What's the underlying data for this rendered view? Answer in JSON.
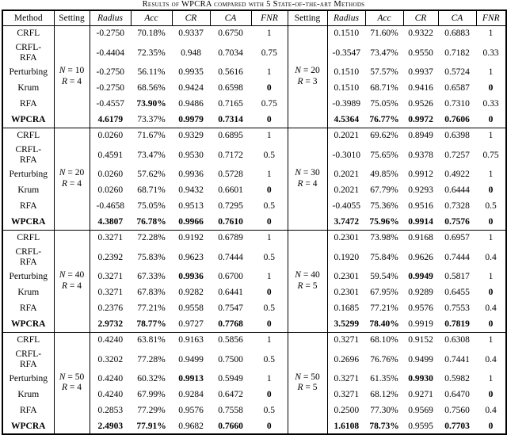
{
  "title": "Results of WPCRA compared with 5 State-of-the-art Methods",
  "header": {
    "columns": [
      "Method",
      "Setting",
      "Radius",
      "Acc",
      "CR",
      "CA",
      "FNR",
      "Setting",
      "Radius",
      "Acc",
      "CR",
      "CA",
      "FNR"
    ]
  },
  "blocks": [
    {
      "left_setting": [
        "N = 10",
        "R = 4"
      ],
      "right_setting": [
        "N = 20",
        "R = 3"
      ],
      "rows": [
        {
          "method_lines": [
            "CRFL"
          ],
          "bold_method": false,
          "left": [
            "-0.2750",
            "70.18%",
            "0.9337",
            "0.6750",
            "1"
          ],
          "left_bold": [
            0,
            0,
            0,
            0,
            0
          ],
          "right": [
            "0.1510",
            "71.60%",
            "0.9322",
            "0.6883",
            "1"
          ],
          "right_bold": [
            0,
            0,
            0,
            0,
            0
          ]
        },
        {
          "method_lines": [
            "CRFL-",
            "RFA"
          ],
          "bold_method": false,
          "left": [
            "-0.4404",
            "72.35%",
            "0.948",
            "0.7034",
            "0.75"
          ],
          "left_bold": [
            0,
            0,
            0,
            0,
            0
          ],
          "right": [
            "-0.3547",
            "73.47%",
            "0.9550",
            "0.7182",
            "0.33"
          ],
          "right_bold": [
            0,
            0,
            0,
            0,
            0
          ]
        },
        {
          "method_lines": [
            "Perturbing"
          ],
          "bold_method": false,
          "left": [
            "-0.2750",
            "56.11%",
            "0.9935",
            "0.5616",
            "1"
          ],
          "left_bold": [
            0,
            0,
            0,
            0,
            0
          ],
          "right": [
            "0.1510",
            "57.57%",
            "0.9937",
            "0.5724",
            "1"
          ],
          "right_bold": [
            0,
            0,
            0,
            0,
            0
          ]
        },
        {
          "method_lines": [
            "Krum"
          ],
          "bold_method": false,
          "left": [
            "-0.2750",
            "68.56%",
            "0.9424",
            "0.6598",
            "0"
          ],
          "left_bold": [
            0,
            0,
            0,
            0,
            1
          ],
          "right": [
            "0.1510",
            "68.71%",
            "0.9416",
            "0.6587",
            "0"
          ],
          "right_bold": [
            0,
            0,
            0,
            0,
            1
          ]
        },
        {
          "method_lines": [
            "RFA"
          ],
          "bold_method": false,
          "left": [
            "-0.4557",
            "73.90%",
            "0.9486",
            "0.7165",
            "0.75"
          ],
          "left_bold": [
            0,
            1,
            0,
            0,
            0
          ],
          "right": [
            "-0.3989",
            "75.05%",
            "0.9526",
            "0.7310",
            "0.33"
          ],
          "right_bold": [
            0,
            0,
            0,
            0,
            0
          ]
        },
        {
          "method_lines": [
            "WPCRA"
          ],
          "bold_method": true,
          "left": [
            "4.6179",
            "73.37%",
            "0.9979",
            "0.7314",
            "0"
          ],
          "left_bold": [
            1,
            0,
            1,
            1,
            1
          ],
          "right": [
            "4.5364",
            "76.77%",
            "0.9972",
            "0.7606",
            "0"
          ],
          "right_bold": [
            1,
            1,
            1,
            1,
            1
          ]
        }
      ]
    },
    {
      "left_setting": [
        "N = 20",
        "R = 4"
      ],
      "right_setting": [
        "N = 30",
        "R = 4"
      ],
      "rows": [
        {
          "method_lines": [
            "CRFL"
          ],
          "bold_method": false,
          "left": [
            "0.0260",
            "71.67%",
            "0.9329",
            "0.6895",
            "1"
          ],
          "left_bold": [
            0,
            0,
            0,
            0,
            0
          ],
          "right": [
            "0.2021",
            "69.62%",
            "0.8949",
            "0.6398",
            "1"
          ],
          "right_bold": [
            0,
            0,
            0,
            0,
            0
          ]
        },
        {
          "method_lines": [
            "CRFL-",
            "RFA"
          ],
          "bold_method": false,
          "left": [
            "0.4591",
            "73.47%",
            "0.9530",
            "0.7172",
            "0.5"
          ],
          "left_bold": [
            0,
            0,
            0,
            0,
            0
          ],
          "right": [
            "-0.3010",
            "75.65%",
            "0.9378",
            "0.7257",
            "0.75"
          ],
          "right_bold": [
            0,
            0,
            0,
            0,
            0
          ]
        },
        {
          "method_lines": [
            "Perturbing"
          ],
          "bold_method": false,
          "left": [
            "0.0260",
            "57.62%",
            "0.9936",
            "0.5728",
            "1"
          ],
          "left_bold": [
            0,
            0,
            0,
            0,
            0
          ],
          "right": [
            "0.2021",
            "49.85%",
            "0.9912",
            "0.4922",
            "1"
          ],
          "right_bold": [
            0,
            0,
            0,
            0,
            0
          ]
        },
        {
          "method_lines": [
            "Krum"
          ],
          "bold_method": false,
          "left": [
            "0.0260",
            "68.71%",
            "0.9432",
            "0.6601",
            "0"
          ],
          "left_bold": [
            0,
            0,
            0,
            0,
            1
          ],
          "right": [
            "0.2021",
            "67.79%",
            "0.9293",
            "0.6444",
            "0"
          ],
          "right_bold": [
            0,
            0,
            0,
            0,
            1
          ]
        },
        {
          "method_lines": [
            "RFA"
          ],
          "bold_method": false,
          "left": [
            "-0.4658",
            "75.05%",
            "0.9513",
            "0.7295",
            "0.5"
          ],
          "left_bold": [
            0,
            0,
            0,
            0,
            0
          ],
          "right": [
            "-0.4055",
            "75.36%",
            "0.9516",
            "0.7328",
            "0.5"
          ],
          "right_bold": [
            0,
            0,
            0,
            0,
            0
          ]
        },
        {
          "method_lines": [
            "WPCRA"
          ],
          "bold_method": true,
          "left": [
            "4.3807",
            "76.78%",
            "0.9966",
            "0.7610",
            "0"
          ],
          "left_bold": [
            1,
            1,
            1,
            1,
            1
          ],
          "right": [
            "3.7472",
            "75.96%",
            "0.9914",
            "0.7576",
            "0"
          ],
          "right_bold": [
            1,
            1,
            1,
            1,
            1
          ]
        }
      ]
    },
    {
      "left_setting": [
        "N = 40",
        "R = 4"
      ],
      "right_setting": [
        "N = 40",
        "R = 5"
      ],
      "rows": [
        {
          "method_lines": [
            "CRFL"
          ],
          "bold_method": false,
          "left": [
            "0.3271",
            "72.28%",
            "0.9192",
            "0.6789",
            "1"
          ],
          "left_bold": [
            0,
            0,
            0,
            0,
            0
          ],
          "right": [
            "0.2301",
            "73.98%",
            "0.9168",
            "0.6957",
            "1"
          ],
          "right_bold": [
            0,
            0,
            0,
            0,
            0
          ]
        },
        {
          "method_lines": [
            "CRFL-",
            "RFA"
          ],
          "bold_method": false,
          "left": [
            "0.2392",
            "75.83%",
            "0.9623",
            "0.7444",
            "0.5"
          ],
          "left_bold": [
            0,
            0,
            0,
            0,
            0
          ],
          "right": [
            "0.1920",
            "75.84%",
            "0.9626",
            "0.7444",
            "0.4"
          ],
          "right_bold": [
            0,
            0,
            0,
            0,
            0
          ]
        },
        {
          "method_lines": [
            "Perturbing"
          ],
          "bold_method": false,
          "left": [
            "0.3271",
            "67.33%",
            "0.9936",
            "0.6700",
            "1"
          ],
          "left_bold": [
            0,
            0,
            1,
            0,
            0
          ],
          "right": [
            "0.2301",
            "59.54%",
            "0.9949",
            "0.5817",
            "1"
          ],
          "right_bold": [
            0,
            0,
            1,
            0,
            0
          ]
        },
        {
          "method_lines": [
            "Krum"
          ],
          "bold_method": false,
          "left": [
            "0.3271",
            "67.83%",
            "0.9282",
            "0.6441",
            "0"
          ],
          "left_bold": [
            0,
            0,
            0,
            0,
            1
          ],
          "right": [
            "0.2301",
            "67.95%",
            "0.9289",
            "0.6455",
            "0"
          ],
          "right_bold": [
            0,
            0,
            0,
            0,
            1
          ]
        },
        {
          "method_lines": [
            "RFA"
          ],
          "bold_method": false,
          "left": [
            "0.2376",
            "77.21%",
            "0.9558",
            "0.7547",
            "0.5"
          ],
          "left_bold": [
            0,
            0,
            0,
            0,
            0
          ],
          "right": [
            "0.1685",
            "77.21%",
            "0.9576",
            "0.7553",
            "0.4"
          ],
          "right_bold": [
            0,
            0,
            0,
            0,
            0
          ]
        },
        {
          "method_lines": [
            "WPCRA"
          ],
          "bold_method": true,
          "left": [
            "2.9732",
            "78.77%",
            "0.9727",
            "0.7768",
            "0"
          ],
          "left_bold": [
            1,
            1,
            0,
            1,
            1
          ],
          "right": [
            "3.5299",
            "78.40%",
            "0.9919",
            "0.7819",
            "0"
          ],
          "right_bold": [
            1,
            1,
            0,
            1,
            1
          ]
        }
      ]
    },
    {
      "left_setting": [
        "N = 50",
        "R = 4"
      ],
      "right_setting": [
        "N = 50",
        "R = 5"
      ],
      "rows": [
        {
          "method_lines": [
            "CRFL"
          ],
          "bold_method": false,
          "left": [
            "0.4240",
            "63.81%",
            "0.9163",
            "0.5856",
            "1"
          ],
          "left_bold": [
            0,
            0,
            0,
            0,
            0
          ],
          "right": [
            "0.3271",
            "68.10%",
            "0.9152",
            "0.6308",
            "1"
          ],
          "right_bold": [
            0,
            0,
            0,
            0,
            0
          ]
        },
        {
          "method_lines": [
            "CRFL-",
            "RFA"
          ],
          "bold_method": false,
          "left": [
            "0.3202",
            "77.28%",
            "0.9499",
            "0.7500",
            "0.5"
          ],
          "left_bold": [
            0,
            0,
            0,
            0,
            0
          ],
          "right": [
            "0.2696",
            "76.76%",
            "0.9499",
            "0.7441",
            "0.4"
          ],
          "right_bold": [
            0,
            0,
            0,
            0,
            0
          ]
        },
        {
          "method_lines": [
            "Perturbing"
          ],
          "bold_method": false,
          "left": [
            "0.4240",
            "60.32%",
            "0.9913",
            "0.5949",
            "1"
          ],
          "left_bold": [
            0,
            0,
            1,
            0,
            0
          ],
          "right": [
            "0.3271",
            "61.35%",
            "0.9930",
            "0.5982",
            "1"
          ],
          "right_bold": [
            0,
            0,
            1,
            0,
            0
          ]
        },
        {
          "method_lines": [
            "Krum"
          ],
          "bold_method": false,
          "left": [
            "0.4240",
            "67.99%",
            "0.9284",
            "0.6472",
            "0"
          ],
          "left_bold": [
            0,
            0,
            0,
            0,
            1
          ],
          "right": [
            "0.3271",
            "68.12%",
            "0.9271",
            "0.6470",
            "0"
          ],
          "right_bold": [
            0,
            0,
            0,
            0,
            1
          ]
        },
        {
          "method_lines": [
            "RFA"
          ],
          "bold_method": false,
          "left": [
            "0.2853",
            "77.29%",
            "0.9576",
            "0.7558",
            "0.5"
          ],
          "left_bold": [
            0,
            0,
            0,
            0,
            0
          ],
          "right": [
            "0.2500",
            "77.30%",
            "0.9569",
            "0.7560",
            "0.4"
          ],
          "right_bold": [
            0,
            0,
            0,
            0,
            0
          ]
        },
        {
          "method_lines": [
            "WPCRA"
          ],
          "bold_method": true,
          "left": [
            "2.4903",
            "77.91%",
            "0.9682",
            "0.7660",
            "0"
          ],
          "left_bold": [
            1,
            1,
            0,
            1,
            1
          ],
          "right": [
            "1.6108",
            "78.73%",
            "0.9595",
            "0.7703",
            "0"
          ],
          "right_bold": [
            1,
            1,
            0,
            1,
            1
          ]
        }
      ]
    }
  ]
}
